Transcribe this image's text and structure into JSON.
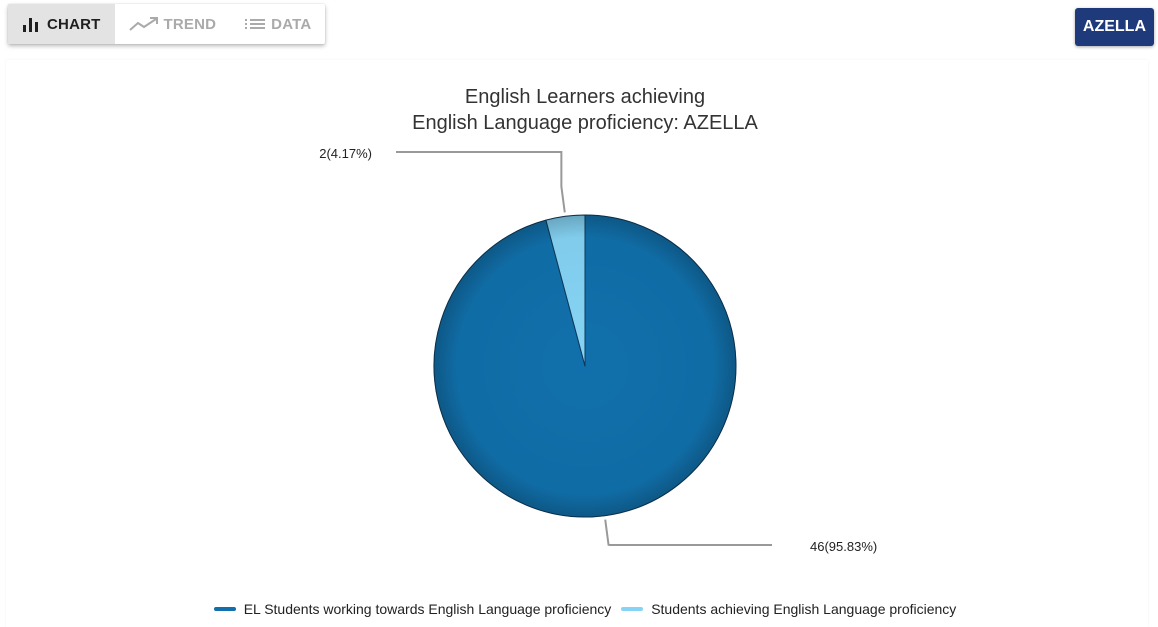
{
  "tabs": [
    {
      "label": "CHART",
      "active": true,
      "icon": "bar-chart-icon"
    },
    {
      "label": "TREND",
      "active": false,
      "icon": "trending-up-icon"
    },
    {
      "label": "DATA",
      "active": false,
      "icon": "list-icon"
    }
  ],
  "azella_button": "AZELLA",
  "colors": {
    "working": "#1170ab",
    "achieving": "#86d4f5",
    "button": "#1f3a7a"
  },
  "chart_data": {
    "type": "pie",
    "title": [
      "English Learners achieving",
      "English Language proficiency: AZELLA"
    ],
    "slices": [
      {
        "name": "EL Students working towards English Language proficiency",
        "value": 46,
        "percent": 95.83,
        "label": "46(95.83%)"
      },
      {
        "name": "Students achieving English Language proficiency",
        "value": 2,
        "percent": 4.17,
        "label": "2(4.17%)"
      }
    ],
    "legend_position": "bottom"
  }
}
